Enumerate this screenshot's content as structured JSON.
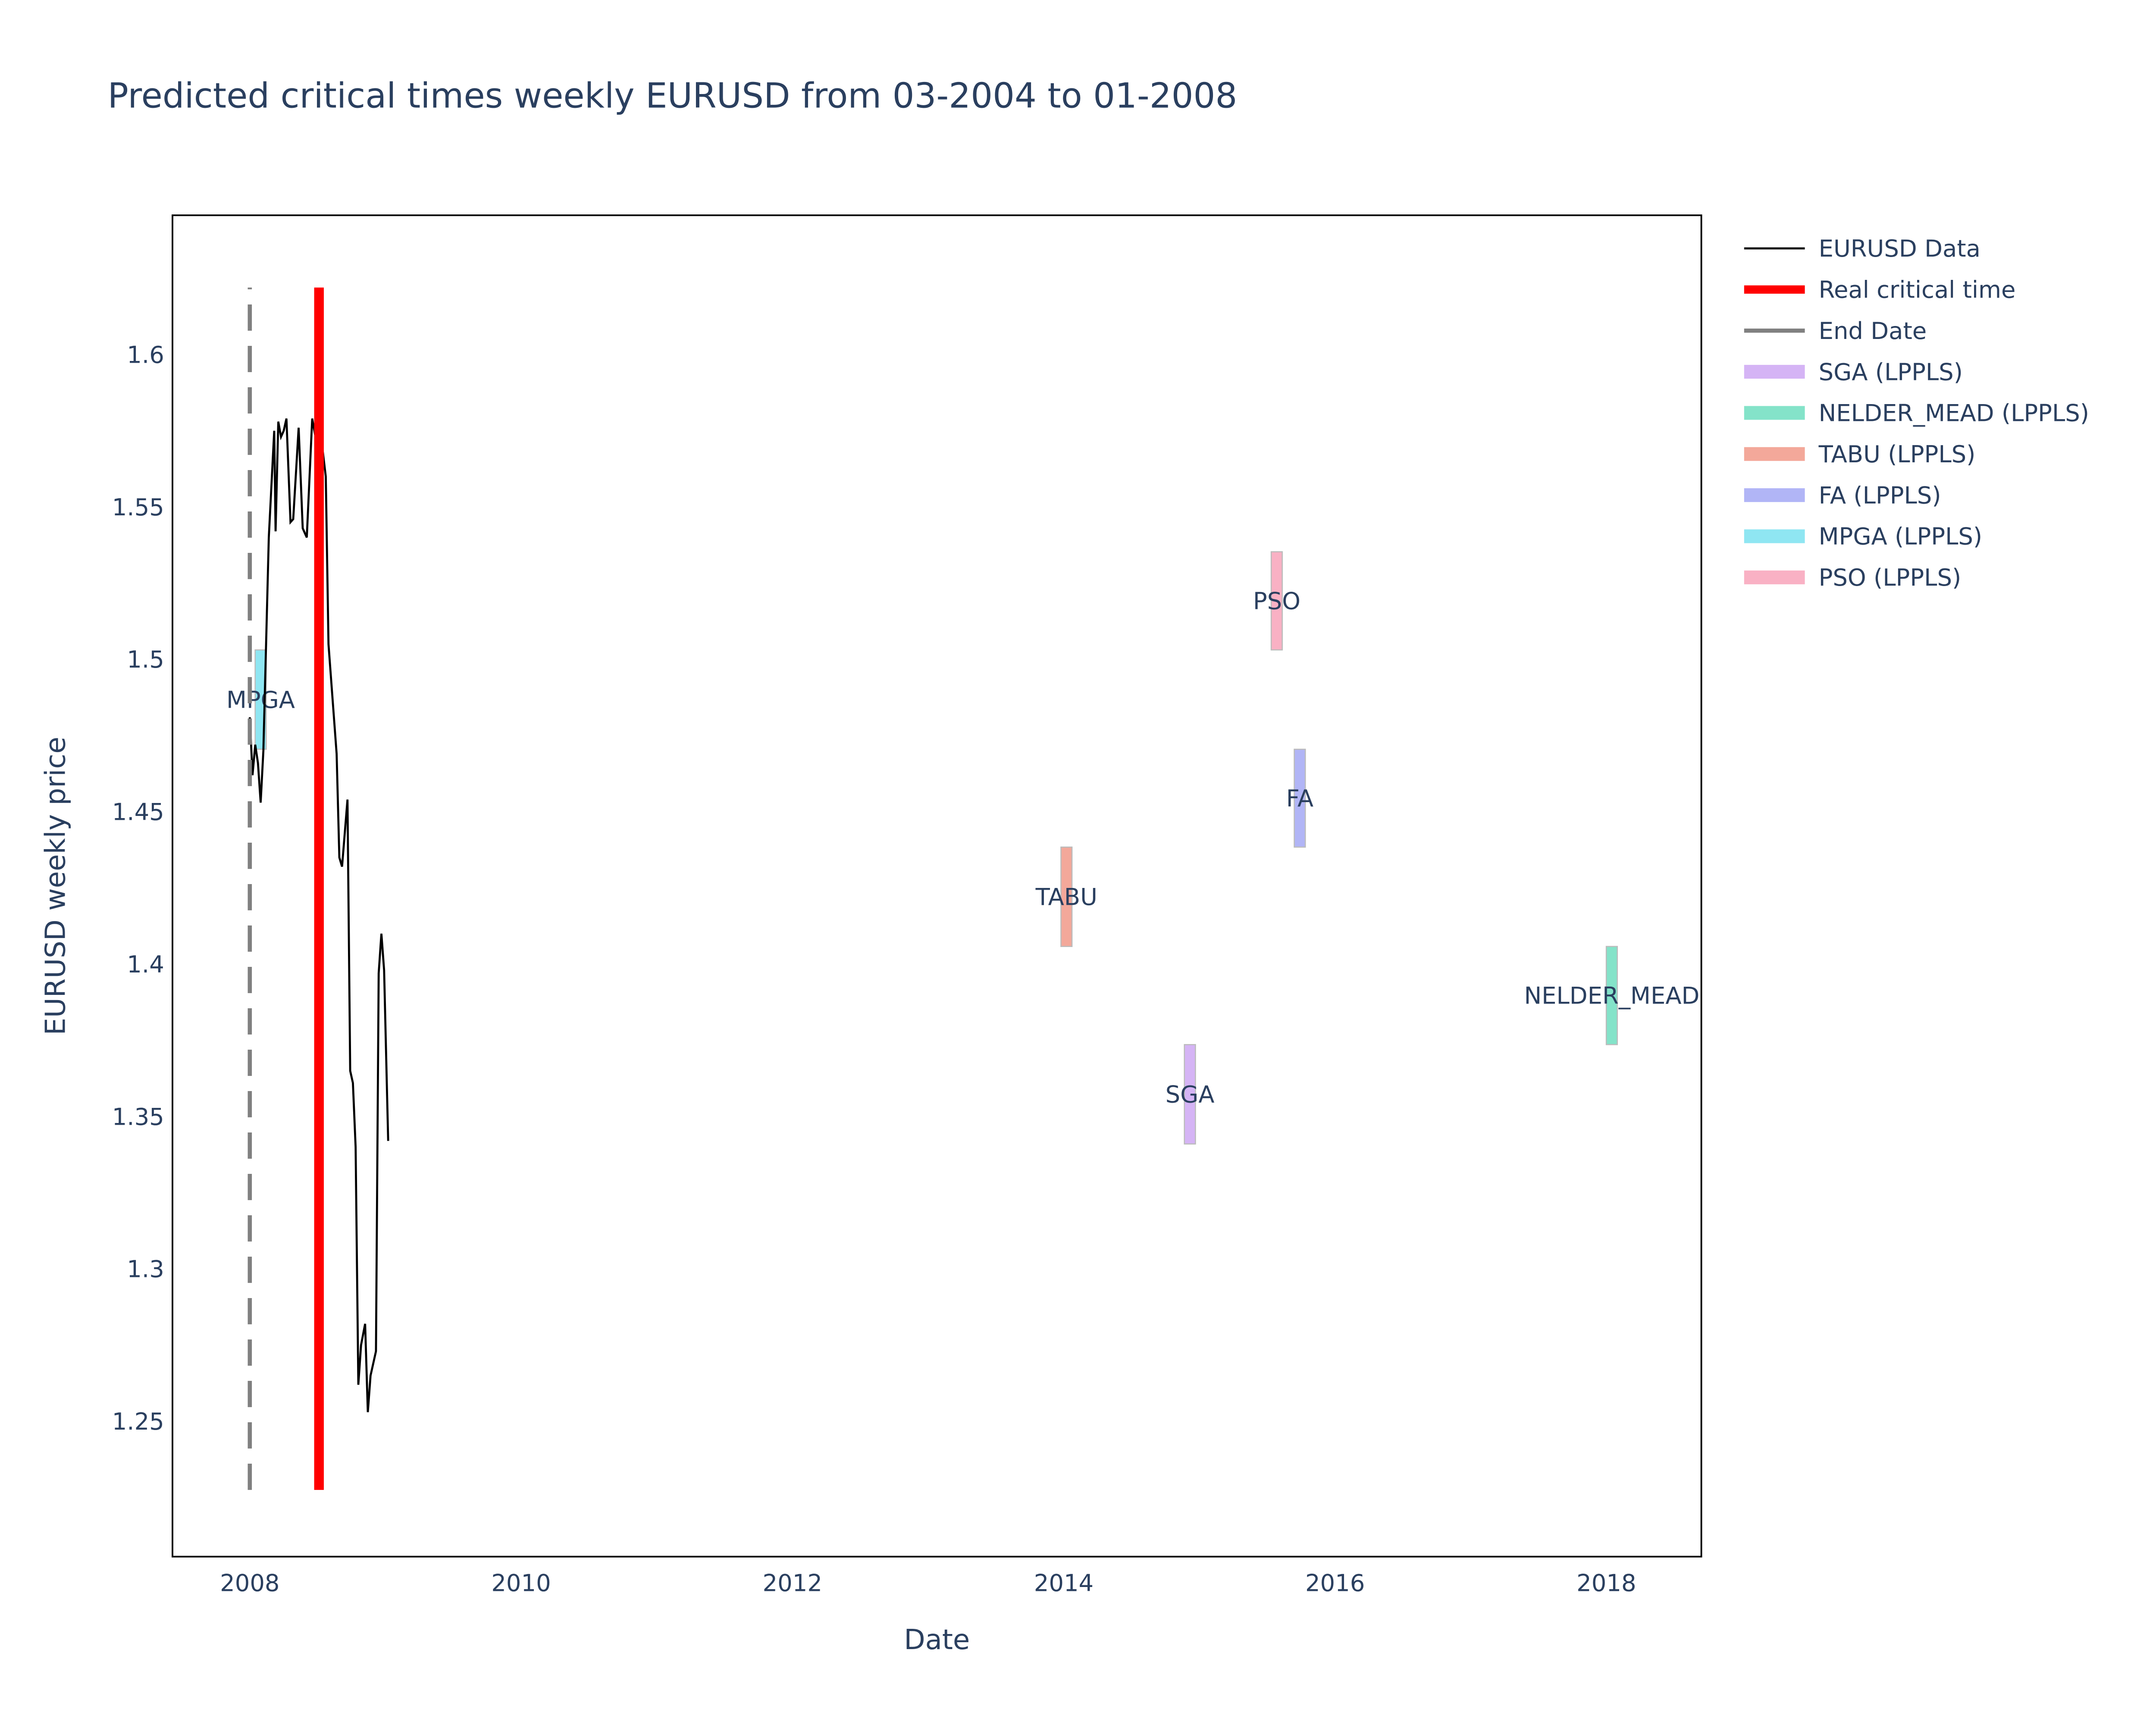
{
  "chart_data": {
    "type": "line",
    "title": "Predicted critical times weekly EURUSD from 03-2004 to 01-2008",
    "x_label": "Date",
    "y_label": "EURUSD weekly price",
    "xlim": [
      2007.43,
      2018.7
    ],
    "xticks": [
      2008,
      2010,
      2012,
      2014,
      2016,
      2018
    ],
    "ylim": [
      1.2056,
      1.6457
    ],
    "yticks": [
      1.25,
      1.3,
      1.35,
      1.4,
      1.45,
      1.5,
      1.55,
      1.6
    ],
    "series": [
      {
        "name": "EURUSD Data",
        "kind": "line",
        "color": "#000000",
        "x": [
          2008.0,
          2008.02,
          2008.04,
          2008.06,
          2008.08,
          2008.1,
          2008.12,
          2008.14,
          2008.18,
          2008.19,
          2008.21,
          2008.23,
          2008.25,
          2008.27,
          2008.3,
          2008.32,
          2008.36,
          2008.39,
          2008.42,
          2008.46,
          2008.48,
          2008.52,
          2008.56,
          2008.58,
          2008.64,
          2008.66,
          2008.68,
          2008.72,
          2008.74,
          2008.76,
          2008.78,
          2008.8,
          2008.82,
          2008.85,
          2008.87,
          2008.89,
          2008.93,
          2008.95,
          2008.97,
          2008.99,
          2009.02
        ],
        "values": [
          1.481,
          1.462,
          1.472,
          1.466,
          1.453,
          1.47,
          1.505,
          1.54,
          1.575,
          1.542,
          1.578,
          1.573,
          1.575,
          1.579,
          1.545,
          1.546,
          1.576,
          1.543,
          1.54,
          1.579,
          1.574,
          1.575,
          1.56,
          1.505,
          1.469,
          1.435,
          1.432,
          1.454,
          1.365,
          1.361,
          1.34,
          1.262,
          1.275,
          1.282,
          1.253,
          1.265,
          1.273,
          1.397,
          1.41,
          1.398,
          1.342
        ]
      },
      {
        "name": "Real critical time",
        "kind": "vline",
        "color": "#ff0000",
        "x": 2008.51,
        "values": [
          1.2275,
          1.622
        ]
      },
      {
        "name": "End Date",
        "kind": "dashed",
        "color": "#808080",
        "x": 2008.0,
        "values": [
          1.2275,
          1.622
        ]
      },
      {
        "name": "SGA (LPPLS)",
        "kind": "band",
        "color": "#d5b4f5",
        "x": 2014.93,
        "values": [
          1.341,
          1.3736
        ],
        "label": "SGA"
      },
      {
        "name": "NELDER_MEAD (LPPLS)",
        "kind": "band",
        "color": "#84e3c9",
        "x": 2018.04,
        "values": [
          1.3736,
          1.4058
        ],
        "label": "NELDER_MEAD"
      },
      {
        "name": "TABU (LPPLS)",
        "kind": "band",
        "color": "#f3a89a",
        "x": 2014.02,
        "values": [
          1.4058,
          1.4384
        ],
        "label": "TABU"
      },
      {
        "name": "FA (LPPLS)",
        "kind": "band",
        "color": "#b1b5f6",
        "x": 2015.74,
        "values": [
          1.4384,
          1.4705
        ],
        "label": "FA"
      },
      {
        "name": "MPGA (LPPLS)",
        "kind": "band",
        "color": "#8fe6f2",
        "x": 2008.08,
        "values": [
          1.4705,
          1.5031
        ],
        "label": "MPGA"
      },
      {
        "name": "PSO (LPPLS)",
        "kind": "band",
        "color": "#f9b1c4",
        "x": 2015.57,
        "values": [
          1.5031,
          1.5353
        ],
        "label": "PSO"
      }
    ]
  }
}
